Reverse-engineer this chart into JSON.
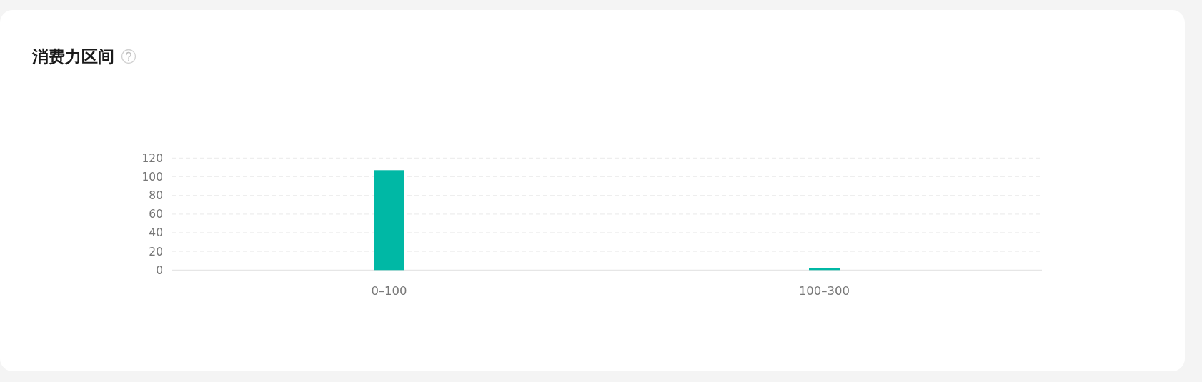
{
  "chart_data": {
    "type": "bar",
    "title": "消费力区间",
    "categories": [
      "0–100",
      "100–300"
    ],
    "values": [
      107,
      2
    ],
    "color": "#00b8a5",
    "ylim": [
      0,
      120
    ],
    "yticks": [
      0,
      20,
      40,
      60,
      80,
      100,
      120
    ],
    "grid": "y"
  }
}
